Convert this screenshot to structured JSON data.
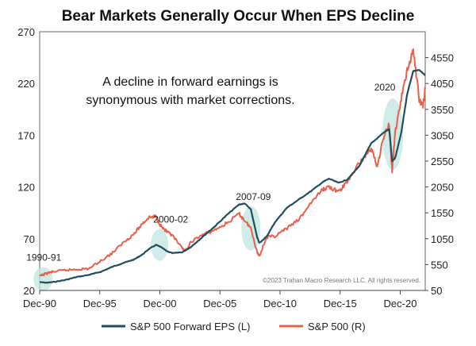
{
  "chart_data": {
    "type": "line",
    "title": "Bear Markets Generally Occur When EPS Decline",
    "annotation": [
      "A decline in forward earnings is",
      "synonymous with market corrections."
    ],
    "copyright": "©2023 Trahan Macro Research LLC. All rights reserved.",
    "x_ticks": [
      "Dec-90",
      "Dec-95",
      "Dec-00",
      "Dec-05",
      "Dec-10",
      "Dec-15",
      "Dec-20"
    ],
    "x_range": [
      1990.92,
      2023.0
    ],
    "left_axis": {
      "ticks": [
        "20",
        "70",
        "120",
        "170",
        "220",
        "270"
      ],
      "range": [
        20,
        270
      ]
    },
    "right_axis": {
      "ticks": [
        "50",
        "550",
        "1050",
        "1550",
        "2050",
        "2550",
        "3050",
        "3550",
        "4050",
        "4550"
      ],
      "range": [
        50,
        5050
      ]
    },
    "regions": [
      {
        "label": "1990-91",
        "x": 1991.2,
        "y_eps": 31
      },
      {
        "label": "2000-02",
        "x": 2000.9,
        "y_eps": 64
      },
      {
        "label": "2007-09",
        "x": 2008.5,
        "y_eps": 80
      },
      {
        "label": "2020",
        "x": 2020.3,
        "y_eps": 171
      }
    ],
    "series": [
      {
        "name": "S&P 500 Forward EPS (L)",
        "axis": "left",
        "color": "#1f4e5f",
        "points": [
          [
            1990.92,
            28
          ],
          [
            1991.5,
            27.5
          ],
          [
            1992.0,
            28
          ],
          [
            1993.0,
            30
          ],
          [
            1994.0,
            33
          ],
          [
            1995.0,
            35
          ],
          [
            1996.0,
            38
          ],
          [
            1997.0,
            43
          ],
          [
            1998.0,
            47
          ],
          [
            1998.8,
            50
          ],
          [
            1999.5,
            55
          ],
          [
            2000.0,
            60
          ],
          [
            2000.6,
            64
          ],
          [
            2001.0,
            62
          ],
          [
            2001.5,
            58
          ],
          [
            2002.0,
            56
          ],
          [
            2002.8,
            57
          ],
          [
            2003.5,
            62
          ],
          [
            2004.5,
            72
          ],
          [
            2005.5,
            82
          ],
          [
            2006.5,
            93
          ],
          [
            2007.5,
            103
          ],
          [
            2008.0,
            104
          ],
          [
            2008.5,
            98
          ],
          [
            2009.0,
            72
          ],
          [
            2009.2,
            66
          ],
          [
            2009.8,
            72
          ],
          [
            2010.5,
            86
          ],
          [
            2011.5,
            100
          ],
          [
            2012.5,
            108
          ],
          [
            2013.5,
            116
          ],
          [
            2014.5,
            125
          ],
          [
            2015.0,
            128
          ],
          [
            2015.8,
            124
          ],
          [
            2016.5,
            127
          ],
          [
            2017.5,
            140
          ],
          [
            2018.5,
            162
          ],
          [
            2019.5,
            172
          ],
          [
            2020.0,
            176
          ],
          [
            2020.25,
            145
          ],
          [
            2020.5,
            148
          ],
          [
            2021.0,
            172
          ],
          [
            2021.5,
            210
          ],
          [
            2022.0,
            232
          ],
          [
            2022.5,
            233
          ],
          [
            2023.0,
            228
          ]
        ]
      },
      {
        "name": "S&P 500 (R)",
        "axis": "right",
        "color": "#e8604a",
        "points": [
          [
            1990.92,
            330
          ],
          [
            1991.5,
            380
          ],
          [
            1992.0,
            410
          ],
          [
            1993.0,
            440
          ],
          [
            1994.0,
            460
          ],
          [
            1995.0,
            470
          ],
          [
            1996.0,
            620
          ],
          [
            1997.0,
            780
          ],
          [
            1998.0,
            1000
          ],
          [
            1998.8,
            1150
          ],
          [
            1999.5,
            1350
          ],
          [
            2000.0,
            1460
          ],
          [
            2000.6,
            1480
          ],
          [
            2001.0,
            1300
          ],
          [
            2001.5,
            1180
          ],
          [
            2002.0,
            1100
          ],
          [
            2002.8,
            850
          ],
          [
            2003.2,
            830
          ],
          [
            2003.5,
            990
          ],
          [
            2004.5,
            1130
          ],
          [
            2005.5,
            1220
          ],
          [
            2006.5,
            1350
          ],
          [
            2007.5,
            1530
          ],
          [
            2008.0,
            1400
          ],
          [
            2008.5,
            1250
          ],
          [
            2009.0,
            800
          ],
          [
            2009.2,
            720
          ],
          [
            2009.8,
            1080
          ],
          [
            2010.5,
            1100
          ],
          [
            2011.5,
            1250
          ],
          [
            2012.5,
            1420
          ],
          [
            2013.5,
            1750
          ],
          [
            2014.5,
            2000
          ],
          [
            2015.0,
            2060
          ],
          [
            2015.8,
            1950
          ],
          [
            2016.5,
            2150
          ],
          [
            2017.5,
            2500
          ],
          [
            2018.5,
            2800
          ],
          [
            2019.0,
            2450
          ],
          [
            2019.5,
            2980
          ],
          [
            2020.0,
            3280
          ],
          [
            2020.25,
            2350
          ],
          [
            2020.5,
            3100
          ],
          [
            2021.0,
            3750
          ],
          [
            2021.5,
            4300
          ],
          [
            2022.0,
            4700
          ],
          [
            2022.5,
            3750
          ],
          [
            2022.8,
            3600
          ],
          [
            2023.0,
            3950
          ]
        ]
      }
    ]
  }
}
